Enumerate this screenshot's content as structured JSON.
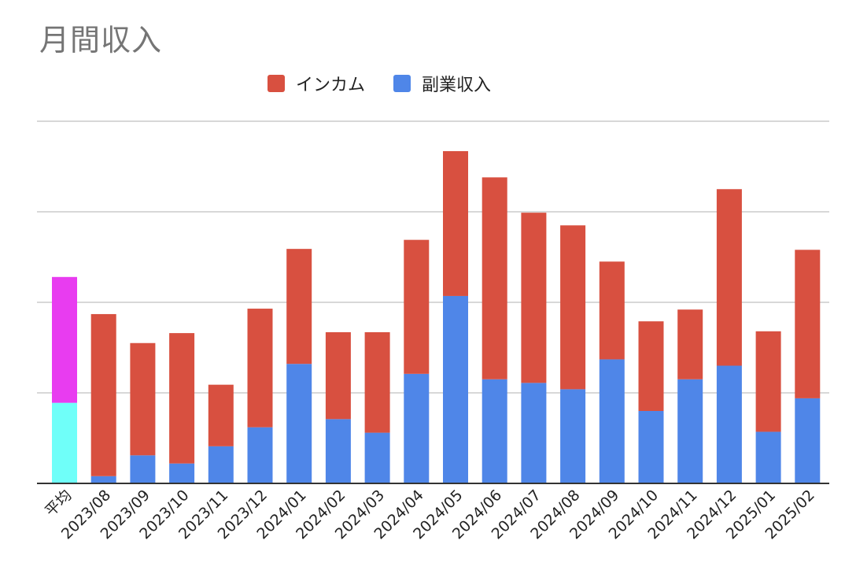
{
  "chart_data": {
    "type": "bar",
    "stacked": true,
    "title": "月間収入",
    "xlabel": "",
    "ylabel": "",
    "y_tick_labels_shown": false,
    "ylim": [
      0,
      400
    ],
    "yticks": [
      0,
      100,
      200,
      300,
      400
    ],
    "grid": true,
    "legend_position": "top",
    "categories": [
      "平均",
      "2023/08",
      "2023/09",
      "2023/10",
      "2023/11",
      "2023/12",
      "2024/01",
      "2024/02",
      "2024/03",
      "2024/04",
      "2024/05",
      "2024/06",
      "2024/07",
      "2024/08",
      "2024/09",
      "2024/10",
      "2024/11",
      "2024/12",
      "2025/01",
      "2025/02"
    ],
    "series": [
      {
        "name": "副業収入",
        "color": "#4f86e8",
        "values": [
          89,
          8,
          31,
          22,
          41,
          62,
          132,
          71,
          56,
          121,
          207,
          115,
          111,
          104,
          137,
          80,
          115,
          130,
          57,
          94
        ]
      },
      {
        "name": "インカム",
        "color": "#d85040",
        "values": [
          139,
          179,
          124,
          144,
          68,
          131,
          127,
          96,
          111,
          148,
          160,
          223,
          188,
          181,
          108,
          99,
          77,
          195,
          111,
          164
        ]
      }
    ],
    "average_bar_colors": {
      "副業収入": "#6ffff9",
      "インカム": "#e83cf0"
    }
  }
}
